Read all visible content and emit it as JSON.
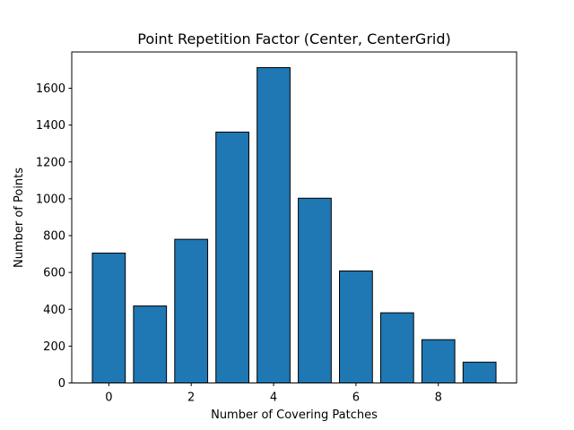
{
  "chart_data": {
    "type": "bar",
    "title": "Point Repetition Factor (Center, CenterGrid)",
    "xlabel": "Number of Covering Patches",
    "ylabel": "Number of Points",
    "categories": [
      0,
      1,
      2,
      3,
      4,
      5,
      6,
      7,
      8,
      9
    ],
    "values": [
      705,
      418,
      780,
      1362,
      1712,
      1003,
      608,
      381,
      235,
      113
    ],
    "xlim": [
      -0.9,
      9.9
    ],
    "ylim": [
      0,
      1797
    ],
    "xticks": [
      0,
      2,
      4,
      6,
      8
    ],
    "yticks": [
      0,
      200,
      400,
      600,
      800,
      1000,
      1200,
      1400,
      1600
    ],
    "bar_color": "#1f77b4",
    "edge_color": "#000000",
    "grid": false
  }
}
